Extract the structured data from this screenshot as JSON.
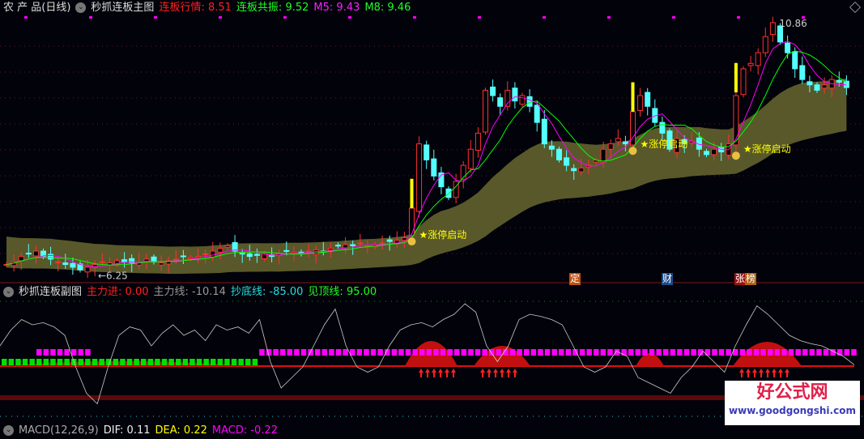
{
  "main_header": {
    "symbol": "农 产 品(日线)",
    "indicator": "秒抓连板主图",
    "f1_label": "连板行情:",
    "f1_value": "8.51",
    "f2_label": "连板共振:",
    "f2_value": "9.52",
    "m5_label": "M5:",
    "m5_value": "9.43",
    "m8_label": "M8:",
    "m8_value": "9.46"
  },
  "sub_header": {
    "indicator": "秒抓连板副图",
    "f1_label": "主力进:",
    "f1_value": "0.00",
    "f2_label": "主力线:",
    "f2_value": "-10.14",
    "f3_label": "抄底线:",
    "f3_value": "-85.00",
    "f4_label": "见顶线:",
    "f4_value": "95.00"
  },
  "macd_header": {
    "text": "MACD(12,26,9)",
    "dif": "DIF: 0.11",
    "dea": "DEA: 0.22",
    "macd": "MACD: -0.22"
  },
  "price": {
    "high_label": "10.86",
    "low_label": "←6.25",
    "signal_label": "★涨停启动"
  },
  "event_tags": [
    {
      "text": "定",
      "color": "#c05010"
    },
    {
      "text": "财",
      "color": "#1a4a8a"
    },
    {
      "text": "张",
      "color": "#a01010"
    },
    {
      "text": "榜",
      "color": "#b06010"
    }
  ],
  "watermark": {
    "name": "好公式网",
    "url": "www.goodgongshi.com"
  },
  "colors": {
    "up": "#ff3030",
    "down": "#54ffff",
    "m5": "#ff00ff",
    "m8": "#00ff00",
    "band": "#58582a",
    "signal": "#ffff00"
  },
  "chart_data": {
    "type": "candlestick",
    "closes": [
      6.35,
      6.4,
      6.5,
      6.55,
      6.6,
      6.5,
      6.45,
      6.4,
      6.35,
      6.3,
      6.25,
      6.3,
      6.35,
      6.4,
      6.38,
      6.42,
      6.4,
      6.38,
      6.4,
      6.45,
      6.4,
      6.38,
      6.42,
      6.45,
      6.5,
      6.48,
      6.5,
      6.55,
      6.6,
      6.65,
      6.7,
      6.6,
      6.55,
      6.5,
      6.52,
      6.55,
      6.5,
      6.55,
      6.6,
      6.58,
      6.55,
      6.6,
      6.62,
      6.6,
      6.65,
      6.7,
      6.72,
      6.7,
      6.75,
      6.7,
      6.72,
      6.75,
      6.78,
      6.8,
      6.85,
      7.4,
      8.6,
      8.3,
      8.0,
      7.8,
      7.6,
      7.9,
      8.2,
      8.5,
      8.8,
      9.6,
      9.5,
      9.3,
      9.6,
      9.4,
      9.5,
      9.3,
      9.0,
      8.6,
      8.5,
      8.3,
      8.2,
      8.1,
      8.15,
      8.2,
      8.3,
      8.5,
      8.6,
      8.7,
      8.6,
      9.2,
      9.5,
      9.3,
      9.0,
      8.8,
      8.5,
      8.7,
      8.6,
      8.65,
      8.5,
      8.4,
      8.5,
      8.45,
      8.6,
      9.5,
      10.0,
      10.1,
      10.3,
      10.6,
      10.86,
      10.5,
      10.3,
      10.0,
      9.8,
      9.7,
      9.6,
      9.7,
      9.8,
      9.75,
      9.65
    ],
    "signal_indices": [
      55,
      85,
      99,
      100
    ],
    "max": 10.86,
    "min": 6.25,
    "oscillator": [
      60,
      75,
      85,
      80,
      82,
      78,
      70,
      40,
      15,
      5,
      40,
      70,
      78,
      75,
      60,
      72,
      80,
      70,
      75,
      65,
      80,
      75,
      78,
      72,
      85,
      45,
      20,
      30,
      40,
      60,
      80,
      95,
      60,
      40,
      35,
      40,
      60,
      75,
      80,
      82,
      78,
      85,
      90,
      100,
      92,
      60,
      45,
      60,
      85,
      90,
      88,
      85,
      80,
      60,
      40,
      35,
      40,
      55,
      50,
      30,
      25,
      20,
      15,
      30,
      40,
      55,
      45,
      35,
      60,
      80,
      98,
      90,
      80,
      70,
      65,
      62,
      60,
      55,
      50,
      42
    ]
  }
}
